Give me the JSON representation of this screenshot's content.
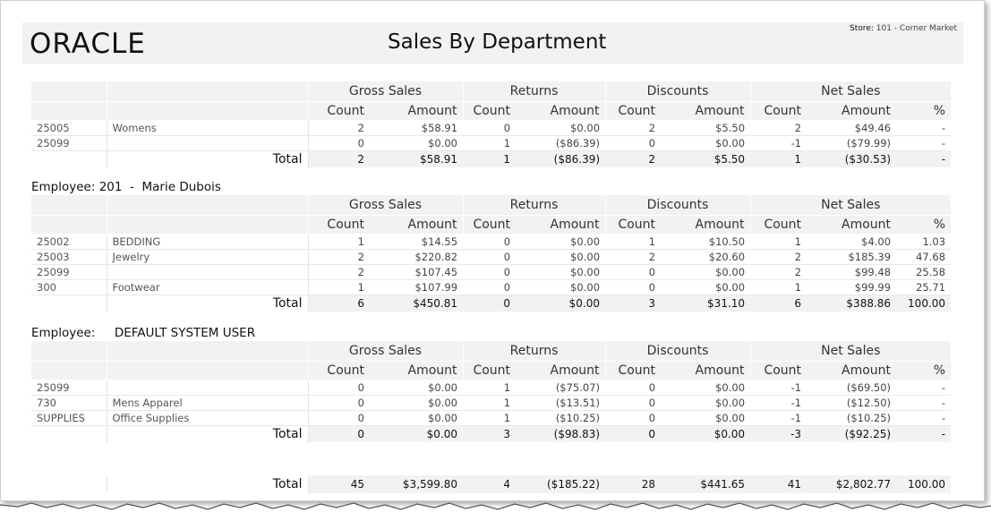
{
  "header": {
    "logo": "ORACLE",
    "title": "Sales By Department",
    "store_label": "Store:",
    "store_value": "101 - Corner Market"
  },
  "columns": {
    "groups": [
      "Gross Sales",
      "Returns",
      "Discounts",
      "Net Sales"
    ],
    "count": "Count",
    "amount": "Amount",
    "pct": "%",
    "total_label": "Total"
  },
  "sections": [
    {
      "employee": "",
      "rows": [
        {
          "code": "25005",
          "dept": "Womens",
          "gc": "2",
          "ga": "$58.91",
          "rc": "0",
          "ra": "$0.00",
          "dc": "2",
          "da": "$5.50",
          "nc": "2",
          "na": "$49.46",
          "pct": "-"
        },
        {
          "code": "25099",
          "dept": "",
          "gc": "0",
          "ga": "$0.00",
          "rc": "1",
          "ra": "($86.39)",
          "dc": "0",
          "da": "$0.00",
          "nc": "-1",
          "na": "($79.99)",
          "pct": "-"
        }
      ],
      "total": {
        "gc": "2",
        "ga": "$58.91",
        "rc": "1",
        "ra": "($86.39)",
        "dc": "2",
        "da": "$5.50",
        "nc": "1",
        "na": "($30.53)",
        "pct": "-"
      }
    },
    {
      "employee": "Employee: 201  -  Marie Dubois",
      "rows": [
        {
          "code": "25002",
          "dept": "BEDDING",
          "gc": "1",
          "ga": "$14.55",
          "rc": "0",
          "ra": "$0.00",
          "dc": "1",
          "da": "$10.50",
          "nc": "1",
          "na": "$4.00",
          "pct": "1.03"
        },
        {
          "code": "25003",
          "dept": "Jewelry",
          "gc": "2",
          "ga": "$220.82",
          "rc": "0",
          "ra": "$0.00",
          "dc": "2",
          "da": "$20.60",
          "nc": "2",
          "na": "$185.39",
          "pct": "47.68"
        },
        {
          "code": "25099",
          "dept": "",
          "gc": "2",
          "ga": "$107.45",
          "rc": "0",
          "ra": "$0.00",
          "dc": "0",
          "da": "$0.00",
          "nc": "2",
          "na": "$99.48",
          "pct": "25.58"
        },
        {
          "code": "300",
          "dept": "Footwear",
          "gc": "1",
          "ga": "$107.99",
          "rc": "0",
          "ra": "$0.00",
          "dc": "0",
          "da": "$0.00",
          "nc": "1",
          "na": "$99.99",
          "pct": "25.71"
        }
      ],
      "total": {
        "gc": "6",
        "ga": "$450.81",
        "rc": "0",
        "ra": "$0.00",
        "dc": "3",
        "da": "$31.10",
        "nc": "6",
        "na": "$388.86",
        "pct": "100.00"
      }
    },
    {
      "employee": "Employee:     DEFAULT SYSTEM USER",
      "rows": [
        {
          "code": "25099",
          "dept": "",
          "gc": "0",
          "ga": "$0.00",
          "rc": "1",
          "ra": "($75.07)",
          "dc": "0",
          "da": "$0.00",
          "nc": "-1",
          "na": "($69.50)",
          "pct": "-"
        },
        {
          "code": "730",
          "dept": "Mens Apparel",
          "gc": "0",
          "ga": "$0.00",
          "rc": "1",
          "ra": "($13.51)",
          "dc": "0",
          "da": "$0.00",
          "nc": "-1",
          "na": "($12.50)",
          "pct": "-"
        },
        {
          "code": "SUPPLIES",
          "dept": "Office Supplies",
          "gc": "0",
          "ga": "$0.00",
          "rc": "1",
          "ra": "($10.25)",
          "dc": "0",
          "da": "$0.00",
          "nc": "-1",
          "na": "($10.25)",
          "pct": "-"
        }
      ],
      "total": {
        "gc": "0",
        "ga": "$0.00",
        "rc": "3",
        "ra": "($98.83)",
        "dc": "0",
        "da": "$0.00",
        "nc": "-3",
        "na": "($92.25)",
        "pct": "-"
      }
    }
  ],
  "grand_total": {
    "gc": "45",
    "ga": "$3,599.80",
    "rc": "4",
    "ra": "($185.22)",
    "dc": "28",
    "da": "$441.65",
    "nc": "41",
    "na": "$2,802.77",
    "pct": "100.00"
  }
}
